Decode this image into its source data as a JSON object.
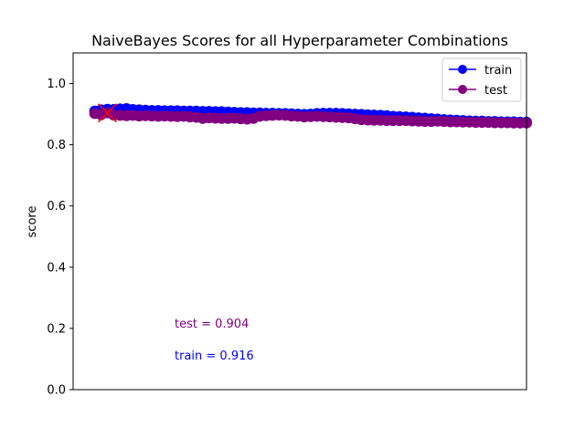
{
  "chart_data": {
    "type": "line",
    "title": "NaiveBayes Scores for all Hyperparameter Combinations",
    "xlabel": "",
    "ylabel": "score",
    "ylim": [
      0.0,
      1.1
    ],
    "xlim": [
      -5,
      100
    ],
    "yticks": [
      0.0,
      0.2,
      0.4,
      0.6,
      0.8,
      1.0
    ],
    "ytick_labels": [
      "0.0",
      "0.2",
      "0.4",
      "0.6",
      "0.8",
      "1.0"
    ],
    "x_ticks_visible": false,
    "grid": false,
    "legend": {
      "position": "top-right",
      "entries": [
        "train",
        "test"
      ]
    },
    "series": [
      {
        "name": "train",
        "color": "#0000ff",
        "marker": "circle",
        "values": [
          0.91,
          0.914,
          0.916,
          0.915,
          0.917,
          0.918,
          0.915,
          0.914,
          0.913,
          0.912,
          0.912,
          0.911,
          0.911,
          0.911,
          0.91,
          0.91,
          0.91,
          0.909,
          0.909,
          0.908,
          0.908,
          0.907,
          0.906,
          0.905,
          0.905,
          0.904,
          0.904,
          0.903,
          0.903,
          0.902,
          0.902,
          0.901,
          0.9,
          0.899,
          0.9,
          0.902,
          0.903,
          0.903,
          0.903,
          0.902,
          0.901,
          0.9,
          0.899,
          0.898,
          0.897,
          0.896,
          0.895,
          0.893,
          0.892,
          0.891,
          0.89,
          0.888,
          0.887,
          0.885,
          0.884,
          0.882,
          0.881,
          0.88,
          0.879,
          0.878,
          0.877,
          0.877,
          0.876,
          0.876,
          0.875,
          0.875,
          0.875,
          0.874,
          0.874
        ]
      },
      {
        "name": "test",
        "color": "#800080",
        "marker": "circle",
        "values": [
          0.902,
          0.898,
          0.904,
          0.897,
          0.896,
          0.895,
          0.896,
          0.894,
          0.895,
          0.894,
          0.893,
          0.894,
          0.893,
          0.892,
          0.893,
          0.891,
          0.89,
          0.886,
          0.888,
          0.887,
          0.886,
          0.886,
          0.887,
          0.885,
          0.884,
          0.886,
          0.893,
          0.895,
          0.896,
          0.897,
          0.896,
          0.894,
          0.893,
          0.891,
          0.892,
          0.893,
          0.892,
          0.891,
          0.89,
          0.889,
          0.888,
          0.885,
          0.882,
          0.881,
          0.88,
          0.88,
          0.879,
          0.879,
          0.879,
          0.879,
          0.878,
          0.877,
          0.876,
          0.876,
          0.877,
          0.876,
          0.875,
          0.875,
          0.874,
          0.874,
          0.873,
          0.873,
          0.873,
          0.872,
          0.872,
          0.872,
          0.871,
          0.871,
          0.871
        ]
      }
    ],
    "best_marker": {
      "index": 2,
      "value": 0.904,
      "color": "#ff0000",
      "marker": "x"
    },
    "annotations": [
      {
        "text": "test = 0.904",
        "color": "#800080"
      },
      {
        "text": "train = 0.916",
        "color": "#0000ff"
      }
    ]
  }
}
